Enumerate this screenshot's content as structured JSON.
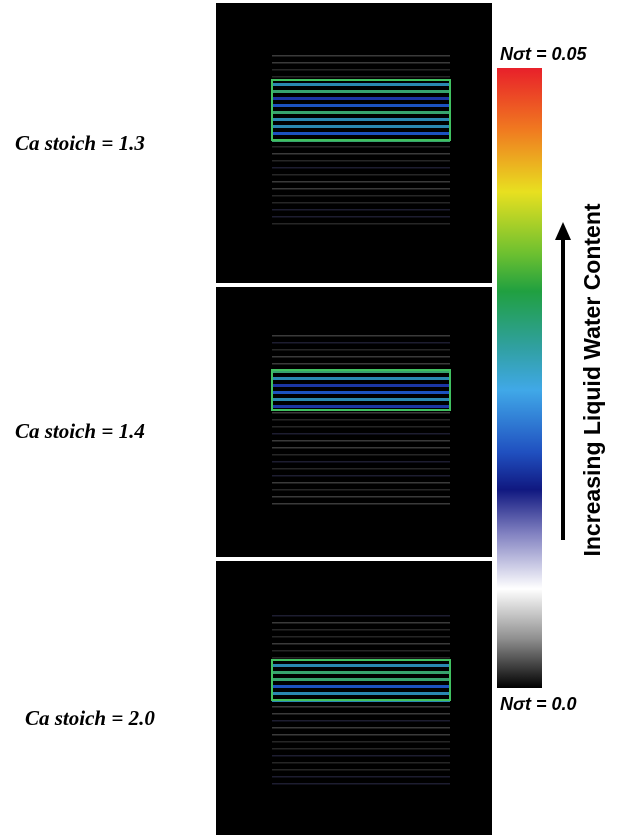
{
  "panels": [
    {
      "label": "Ca stoich = 1.3"
    },
    {
      "label": "Ca stoich = 1.4"
    },
    {
      "label": "Ca stoich = 2.0"
    }
  ],
  "colorbar": {
    "max_label": "Nσt = 0.05",
    "min_label": "Nσt = 0.0",
    "axis_label": "Increasing Liquid Water Content"
  }
}
